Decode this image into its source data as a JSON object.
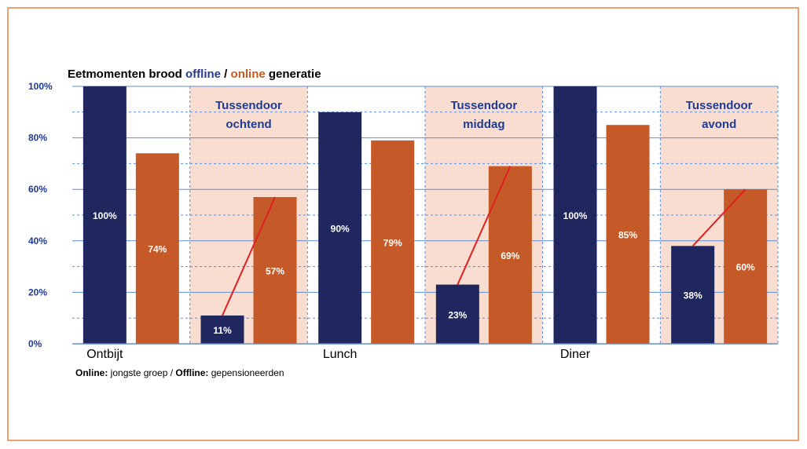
{
  "chart_data": {
    "type": "bar",
    "title_parts": [
      {
        "text": "Eetmomenten brood ",
        "color": "#000000"
      },
      {
        "text": "offline",
        "color": "#2a3a8f"
      },
      {
        "text": " / ",
        "color": "#000000"
      },
      {
        "text": "online",
        "color": "#c55a20"
      },
      {
        "text": " generatie",
        "color": "#000000"
      }
    ],
    "categories": [
      "Ontbijt",
      "Tussendoor ochtend",
      "Lunch",
      "Tussendoor middag",
      "Diner",
      "Tussendoor avond"
    ],
    "x_tick_labels": [
      "Ontbijt",
      "",
      "Lunch",
      "",
      "Diner",
      ""
    ],
    "band_labels": [
      {
        "line1": "Tussendoor",
        "line2": "ochtend"
      },
      {
        "line1": "Tussendoor",
        "line2": "middag"
      },
      {
        "line1": "Tussendoor",
        "line2": "avond"
      }
    ],
    "series": [
      {
        "key": "offline",
        "color": "#20275e",
        "values": [
          100,
          11,
          90,
          23,
          100,
          38
        ]
      },
      {
        "key": "online",
        "color": "#c55a28",
        "values": [
          74,
          57,
          79,
          69,
          85,
          60
        ]
      }
    ],
    "data_labels": {
      "offline": [
        "100%",
        "11%",
        "90%",
        "23%",
        "100%",
        "38%"
      ],
      "online": [
        "74%",
        "57%",
        "79%",
        "69%",
        "85%",
        "60%"
      ]
    },
    "shaded_categories": [
      1,
      3,
      5
    ],
    "trend_lines_for": [
      1,
      3,
      5
    ],
    "ylim": [
      0,
      100
    ],
    "y_ticks": [
      0,
      20,
      40,
      60,
      80,
      100
    ],
    "y_tick_labels": [
      "0%",
      "20%",
      "40%",
      "60%",
      "80%",
      "100%"
    ],
    "grid": true,
    "colors": {
      "band": "#f8ddd0",
      "grid": "#5b8ed6",
      "trend": "#e02020",
      "band_text": "#1f3a93",
      "tick_text": "#1f3a93",
      "frame": "#f0a070"
    }
  },
  "footer": {
    "part1_bold": "Online:",
    "part1": " jongste groep / ",
    "part2_bold": "Offline:",
    "part2": " gepensioneerden"
  }
}
